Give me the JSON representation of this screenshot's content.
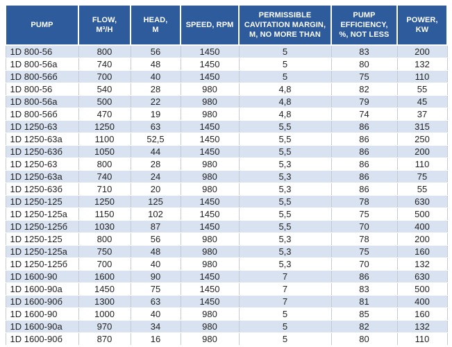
{
  "colors": {
    "header_bg": "#2e5b9c",
    "header_text": "#ffffff",
    "band_row_bg": "#d9e2f1",
    "white_row_bg": "#ffffff",
    "grid_line": "#c3cad6",
    "cell_text": "#1f1f1f"
  },
  "table": {
    "columns": [
      {
        "id": "pump",
        "label": "PUMP"
      },
      {
        "id": "flow",
        "label": "FLOW,\nM³/H"
      },
      {
        "id": "head",
        "label": "HEAD,\nM"
      },
      {
        "id": "speed",
        "label": "SPEED, RPM"
      },
      {
        "id": "cavitation",
        "label": "PERMISSIBLE\nCAVITATION MARGIN,\nM, NO MORE THAN"
      },
      {
        "id": "efficiency",
        "label": "PUMP\nEFFICIENCY,\n%, NOT LESS"
      },
      {
        "id": "power",
        "label": "POWER,\nKW"
      }
    ],
    "rows": [
      [
        "1D 800-56",
        "800",
        "56",
        "1450",
        "5",
        "83",
        "200"
      ],
      [
        "1D 800-56a",
        "740",
        "48",
        "1450",
        "5",
        "80",
        "132"
      ],
      [
        "1D 800-56б",
        "700",
        "40",
        "1450",
        "5",
        "75",
        "110"
      ],
      [
        "1D 800-56",
        "540",
        "28",
        "980",
        "4,8",
        "82",
        "55"
      ],
      [
        "1D 800-56a",
        "500",
        "22",
        "980",
        "4,8",
        "79",
        "45"
      ],
      [
        "1D 800-56б",
        "470",
        "19",
        "980",
        "4,8",
        "74",
        "37"
      ],
      [
        "1D 1250-63",
        "1250",
        "63",
        "1450",
        "5,5",
        "86",
        "315"
      ],
      [
        "1D 1250-63a",
        "1100",
        "52,5",
        "1450",
        "5,5",
        "86",
        "250"
      ],
      [
        "1D 1250-63б",
        "1050",
        "44",
        "1450",
        "5,5",
        "86",
        "200"
      ],
      [
        "1D 1250-63",
        "800",
        "28",
        "980",
        "5,3",
        "86",
        "110"
      ],
      [
        "1D 1250-63a",
        "740",
        "24",
        "980",
        "5,3",
        "86",
        "75"
      ],
      [
        "1D 1250-63б",
        "710",
        "20",
        "980",
        "5,3",
        "86",
        "55"
      ],
      [
        "1D 1250-125",
        "1250",
        "125",
        "1450",
        "5,5",
        "78",
        "630"
      ],
      [
        "1D 1250-125a",
        "1150",
        "102",
        "1450",
        "5,5",
        "75",
        "500"
      ],
      [
        "1D 1250-125б",
        "1030",
        "87",
        "1450",
        "5,5",
        "70",
        "400"
      ],
      [
        "1D 1250-125",
        "800",
        "56",
        "980",
        "5,3",
        "78",
        "200"
      ],
      [
        "1D 1250-125a",
        "750",
        "48",
        "980",
        "5,3",
        "75",
        "160"
      ],
      [
        "1D 1250-125б",
        "700",
        "40",
        "980",
        "5,3",
        "70",
        "132"
      ],
      [
        "1D 1600-90",
        "1600",
        "90",
        "1450",
        "7",
        "86",
        "630"
      ],
      [
        "1D 1600-90a",
        "1450",
        "75",
        "1450",
        "7",
        "83",
        "500"
      ],
      [
        "1D 1600-90б",
        "1300",
        "63",
        "1450",
        "7",
        "81",
        "400"
      ],
      [
        "1D 1600-90",
        "1000",
        "40",
        "980",
        "5",
        "85",
        "160"
      ],
      [
        "1D 1600-90a",
        "970",
        "34",
        "980",
        "5",
        "82",
        "132"
      ],
      [
        "1D 1600-90б",
        "870",
        "16",
        "980",
        "5",
        "80",
        "110"
      ]
    ]
  }
}
